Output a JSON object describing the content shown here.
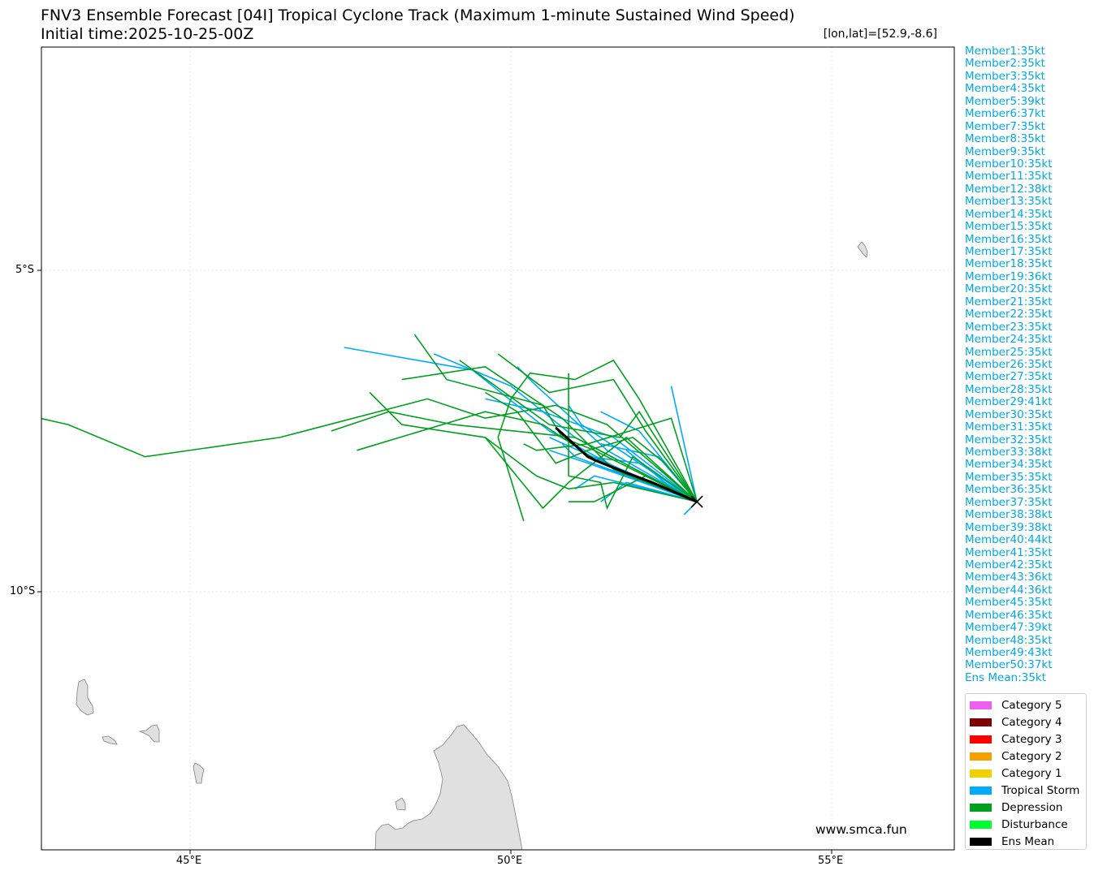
{
  "title": {
    "line1": "FNV3 Ensemble Forecast [04I] Tropical Cyclone Track (Maximum 1-minute Sustained Wind Speed)",
    "line2": "Initial time:2025-10-25-00Z"
  },
  "coord_readout": "[lon,lat]=[52.9,-8.6]",
  "axes": {
    "x_ticks": [
      "45°E",
      "50°E",
      "55°E"
    ],
    "y_ticks": [
      "5°S",
      "10°S"
    ]
  },
  "watermark": "www.smca.fun",
  "members": [
    "Member1:35kt",
    "Member2:35kt",
    "Member3:35kt",
    "Member4:35kt",
    "Member5:39kt",
    "Member6:37kt",
    "Member7:35kt",
    "Member8:35kt",
    "Member9:35kt",
    "Member10:35kt",
    "Member11:35kt",
    "Member12:38kt",
    "Member13:35kt",
    "Member14:35kt",
    "Member15:35kt",
    "Member16:35kt",
    "Member17:35kt",
    "Member18:35kt",
    "Member19:36kt",
    "Member20:35kt",
    "Member21:35kt",
    "Member22:35kt",
    "Member23:35kt",
    "Member24:35kt",
    "Member25:35kt",
    "Member26:35kt",
    "Member27:35kt",
    "Member28:35kt",
    "Member29:41kt",
    "Member30:35kt",
    "Member31:35kt",
    "Member32:35kt",
    "Member33:38kt",
    "Member34:35kt",
    "Member35:35kt",
    "Member36:35kt",
    "Member37:35kt",
    "Member38:38kt",
    "Member39:38kt",
    "Member40:44kt",
    "Member41:35kt",
    "Member42:35kt",
    "Member43:36kt",
    "Member44:36kt",
    "Member45:35kt",
    "Member46:35kt",
    "Member47:39kt",
    "Member48:35kt",
    "Member49:43kt",
    "Member50:37kt",
    "Ens Mean:35kt"
  ],
  "legend": [
    {
      "label": "Category 5",
      "color": "#f060f0"
    },
    {
      "label": "Category 4",
      "color": "#800000"
    },
    {
      "label": "Category 3",
      "color": "#ff0000"
    },
    {
      "label": "Category 2",
      "color": "#f5a000"
    },
    {
      "label": "Category 1",
      "color": "#f0d000"
    },
    {
      "label": "Tropical Storm",
      "color": "#00aaff"
    },
    {
      "label": "Depression",
      "color": "#00a01e"
    },
    {
      "label": "Disturbance",
      "color": "#00ff30"
    },
    {
      "label": "Ens Mean",
      "color": "#000000"
    }
  ],
  "map_data": {
    "extent": {
      "lon": [
        42.2,
        56.4
      ],
      "lat": [
        -8.6,
        -10
      ]
    },
    "initial_position": {
      "lon": 52.9,
      "lat": -8.6
    },
    "ensemble_mean_track": [
      [
        52.9,
        -8.6
      ],
      [
        52.2,
        -8.3
      ],
      [
        51.8,
        -8.15
      ],
      [
        51.3,
        -7.95
      ],
      [
        51.2,
        -7.9
      ],
      [
        50.7,
        -7.45
      ]
    ],
    "member_tracks": [
      {
        "category": "storm",
        "points": [
          [
            52.9,
            -8.6
          ],
          [
            51.7,
            -8.1
          ],
          [
            50.6,
            -7.5
          ],
          [
            49.4,
            -6.55
          ],
          [
            47.4,
            -6.2
          ]
        ]
      },
      {
        "category": "storm",
        "points": [
          [
            52.9,
            -8.6
          ],
          [
            51.5,
            -7.8
          ],
          [
            50.4,
            -6.8
          ],
          [
            50.1,
            -6.5
          ]
        ]
      },
      {
        "category": "storm",
        "points": [
          [
            52.9,
            -8.6
          ],
          [
            51.0,
            -7.6
          ],
          [
            50.0,
            -6.8
          ],
          [
            48.8,
            -6.3
          ]
        ]
      },
      {
        "category": "storm",
        "points": [
          [
            52.9,
            -8.6
          ],
          [
            52.5,
            -6.8
          ]
        ]
      },
      {
        "category": "storm",
        "points": [
          [
            52.9,
            -8.6
          ],
          [
            51.3,
            -8.2
          ],
          [
            51.0,
            -8.4
          ]
        ]
      },
      {
        "category": "storm",
        "points": [
          [
            52.9,
            -8.6
          ],
          [
            52.7,
            -8.8
          ]
        ]
      },
      {
        "category": "storm",
        "points": [
          [
            52.9,
            -8.6
          ],
          [
            51.6,
            -7.6
          ],
          [
            50.5,
            -7.2
          ],
          [
            49.6,
            -7.0
          ]
        ]
      },
      {
        "category": "storm",
        "points": [
          [
            52.9,
            -8.6
          ],
          [
            51.1,
            -7.4
          ],
          [
            50.9,
            -7.1
          ]
        ]
      },
      {
        "category": "storm",
        "points": [
          [
            52.9,
            -8.6
          ],
          [
            52.0,
            -7.5
          ],
          [
            51.4,
            -7.2
          ]
        ]
      },
      {
        "category": "storm",
        "points": [
          [
            52.9,
            -8.6
          ],
          [
            51.5,
            -8.0
          ],
          [
            50.6,
            -7.6
          ]
        ]
      },
      {
        "category": "storm",
        "points": [
          [
            52.9,
            -8.6
          ],
          [
            51.2,
            -8.0
          ],
          [
            50.6,
            -7.8
          ]
        ]
      },
      {
        "category": "storm",
        "points": [
          [
            52.9,
            -8.6
          ],
          [
            52.0,
            -8.0
          ],
          [
            51.2,
            -7.9
          ]
        ]
      },
      {
        "category": "storm",
        "points": [
          [
            52.9,
            -8.6
          ],
          [
            52.3,
            -7.9
          ],
          [
            51.4,
            -7.7
          ]
        ]
      },
      {
        "category": "storm",
        "points": [
          [
            52.9,
            -8.6
          ],
          [
            51.8,
            -8.3
          ],
          [
            51.4,
            -8.6
          ]
        ]
      },
      {
        "category": "storm",
        "points": [
          [
            52.9,
            -8.6
          ],
          [
            52.4,
            -8.3
          ],
          [
            51.8,
            -7.8
          ]
        ]
      },
      {
        "category": "storm",
        "points": [
          [
            52.9,
            -8.6
          ],
          [
            51.0,
            -7.9
          ],
          [
            50.8,
            -7.7
          ]
        ]
      },
      {
        "category": "depression",
        "points": [
          [
            52.9,
            -8.6
          ],
          [
            52.0,
            -7.0
          ],
          [
            51.6,
            -6.4
          ],
          [
            51.0,
            -6.7
          ],
          [
            50.3,
            -6.6
          ],
          [
            50.0,
            -7.0
          ],
          [
            49.8,
            -7.6
          ],
          [
            50.2,
            -8.9
          ]
        ]
      },
      {
        "category": "depression",
        "points": [
          [
            52.9,
            -8.6
          ],
          [
            51.5,
            -7.4
          ],
          [
            50.7,
            -7.1
          ],
          [
            49.6,
            -7.3
          ],
          [
            48.7,
            -7.0
          ],
          [
            46.4,
            -7.6
          ],
          [
            44.3,
            -7.9
          ],
          [
            43.1,
            -7.4
          ],
          [
            42.2,
            -7.2
          ]
        ]
      },
      {
        "category": "depression",
        "points": [
          [
            52.9,
            -8.6
          ],
          [
            51.8,
            -7.6
          ],
          [
            50.9,
            -8.3
          ],
          [
            50.5,
            -8.7
          ],
          [
            49.6,
            -7.6
          ]
        ]
      },
      {
        "category": "depression",
        "points": [
          [
            52.9,
            -8.6
          ],
          [
            52.5,
            -7.3
          ],
          [
            51.2,
            -7.7
          ],
          [
            50.4,
            -7.8
          ],
          [
            50.2,
            -7.7
          ]
        ]
      },
      {
        "category": "depression",
        "points": [
          [
            52.9,
            -8.6
          ],
          [
            51.6,
            -8.1
          ],
          [
            50.8,
            -7.3
          ],
          [
            49.6,
            -6.5
          ],
          [
            48.3,
            -6.7
          ]
        ]
      },
      {
        "category": "depression",
        "points": [
          [
            52.9,
            -8.6
          ],
          [
            52.1,
            -7.5
          ],
          [
            51.6,
            -6.7
          ],
          [
            50.6,
            -6.9
          ],
          [
            49.8,
            -6.3
          ]
        ]
      },
      {
        "category": "depression",
        "points": [
          [
            52.9,
            -8.6
          ],
          [
            51.9,
            -7.9
          ],
          [
            51.5,
            -8.7
          ],
          [
            51.4,
            -8.3
          ],
          [
            50.9,
            -8.2
          ],
          [
            50.9,
            -6.6
          ]
        ]
      },
      {
        "category": "depression",
        "points": [
          [
            52.9,
            -8.6
          ],
          [
            51.3,
            -7.8
          ],
          [
            50.8,
            -7.6
          ],
          [
            50.5,
            -7.1
          ],
          [
            49.0,
            -6.7
          ],
          [
            48.5,
            -6.0
          ]
        ]
      },
      {
        "category": "depression",
        "points": [
          [
            52.9,
            -8.6
          ],
          [
            51.0,
            -7.6
          ],
          [
            49.1,
            -7.4
          ],
          [
            48.1,
            -7.2
          ],
          [
            47.2,
            -7.5
          ]
        ]
      },
      {
        "category": "depression",
        "points": [
          [
            52.9,
            -8.6
          ],
          [
            52.0,
            -7.2
          ],
          [
            51.7,
            -7.6
          ],
          [
            50.6,
            -7.4
          ],
          [
            49.2,
            -6.4
          ]
        ]
      },
      {
        "category": "depression",
        "points": [
          [
            52.9,
            -8.6
          ],
          [
            51.4,
            -8.0
          ],
          [
            50.5,
            -7.4
          ],
          [
            49.6,
            -7.2
          ],
          [
            47.6,
            -7.8
          ]
        ]
      },
      {
        "category": "depression",
        "points": [
          [
            52.9,
            -8.6
          ],
          [
            52.1,
            -8.2
          ],
          [
            51.3,
            -8.6
          ],
          [
            50.9,
            -8.6
          ]
        ]
      },
      {
        "category": "depression",
        "points": [
          [
            52.9,
            -8.6
          ],
          [
            52.4,
            -8.0
          ],
          [
            51.9,
            -7.6
          ],
          [
            51.2,
            -7.8
          ],
          [
            50.7,
            -8.0
          ],
          [
            50.1,
            -7.2
          ],
          [
            49.6,
            -6.9
          ]
        ]
      },
      {
        "category": "depression",
        "points": [
          [
            52.9,
            -8.6
          ],
          [
            51.6,
            -8.3
          ],
          [
            50.9,
            -8.4
          ],
          [
            50.4,
            -8.2
          ],
          [
            49.6,
            -7.6
          ],
          [
            48.3,
            -7.4
          ],
          [
            47.8,
            -6.9
          ]
        ]
      }
    ],
    "land_features": [
      "Comoros",
      "Mayotte",
      "Madagascar",
      "Seychelles"
    ]
  }
}
